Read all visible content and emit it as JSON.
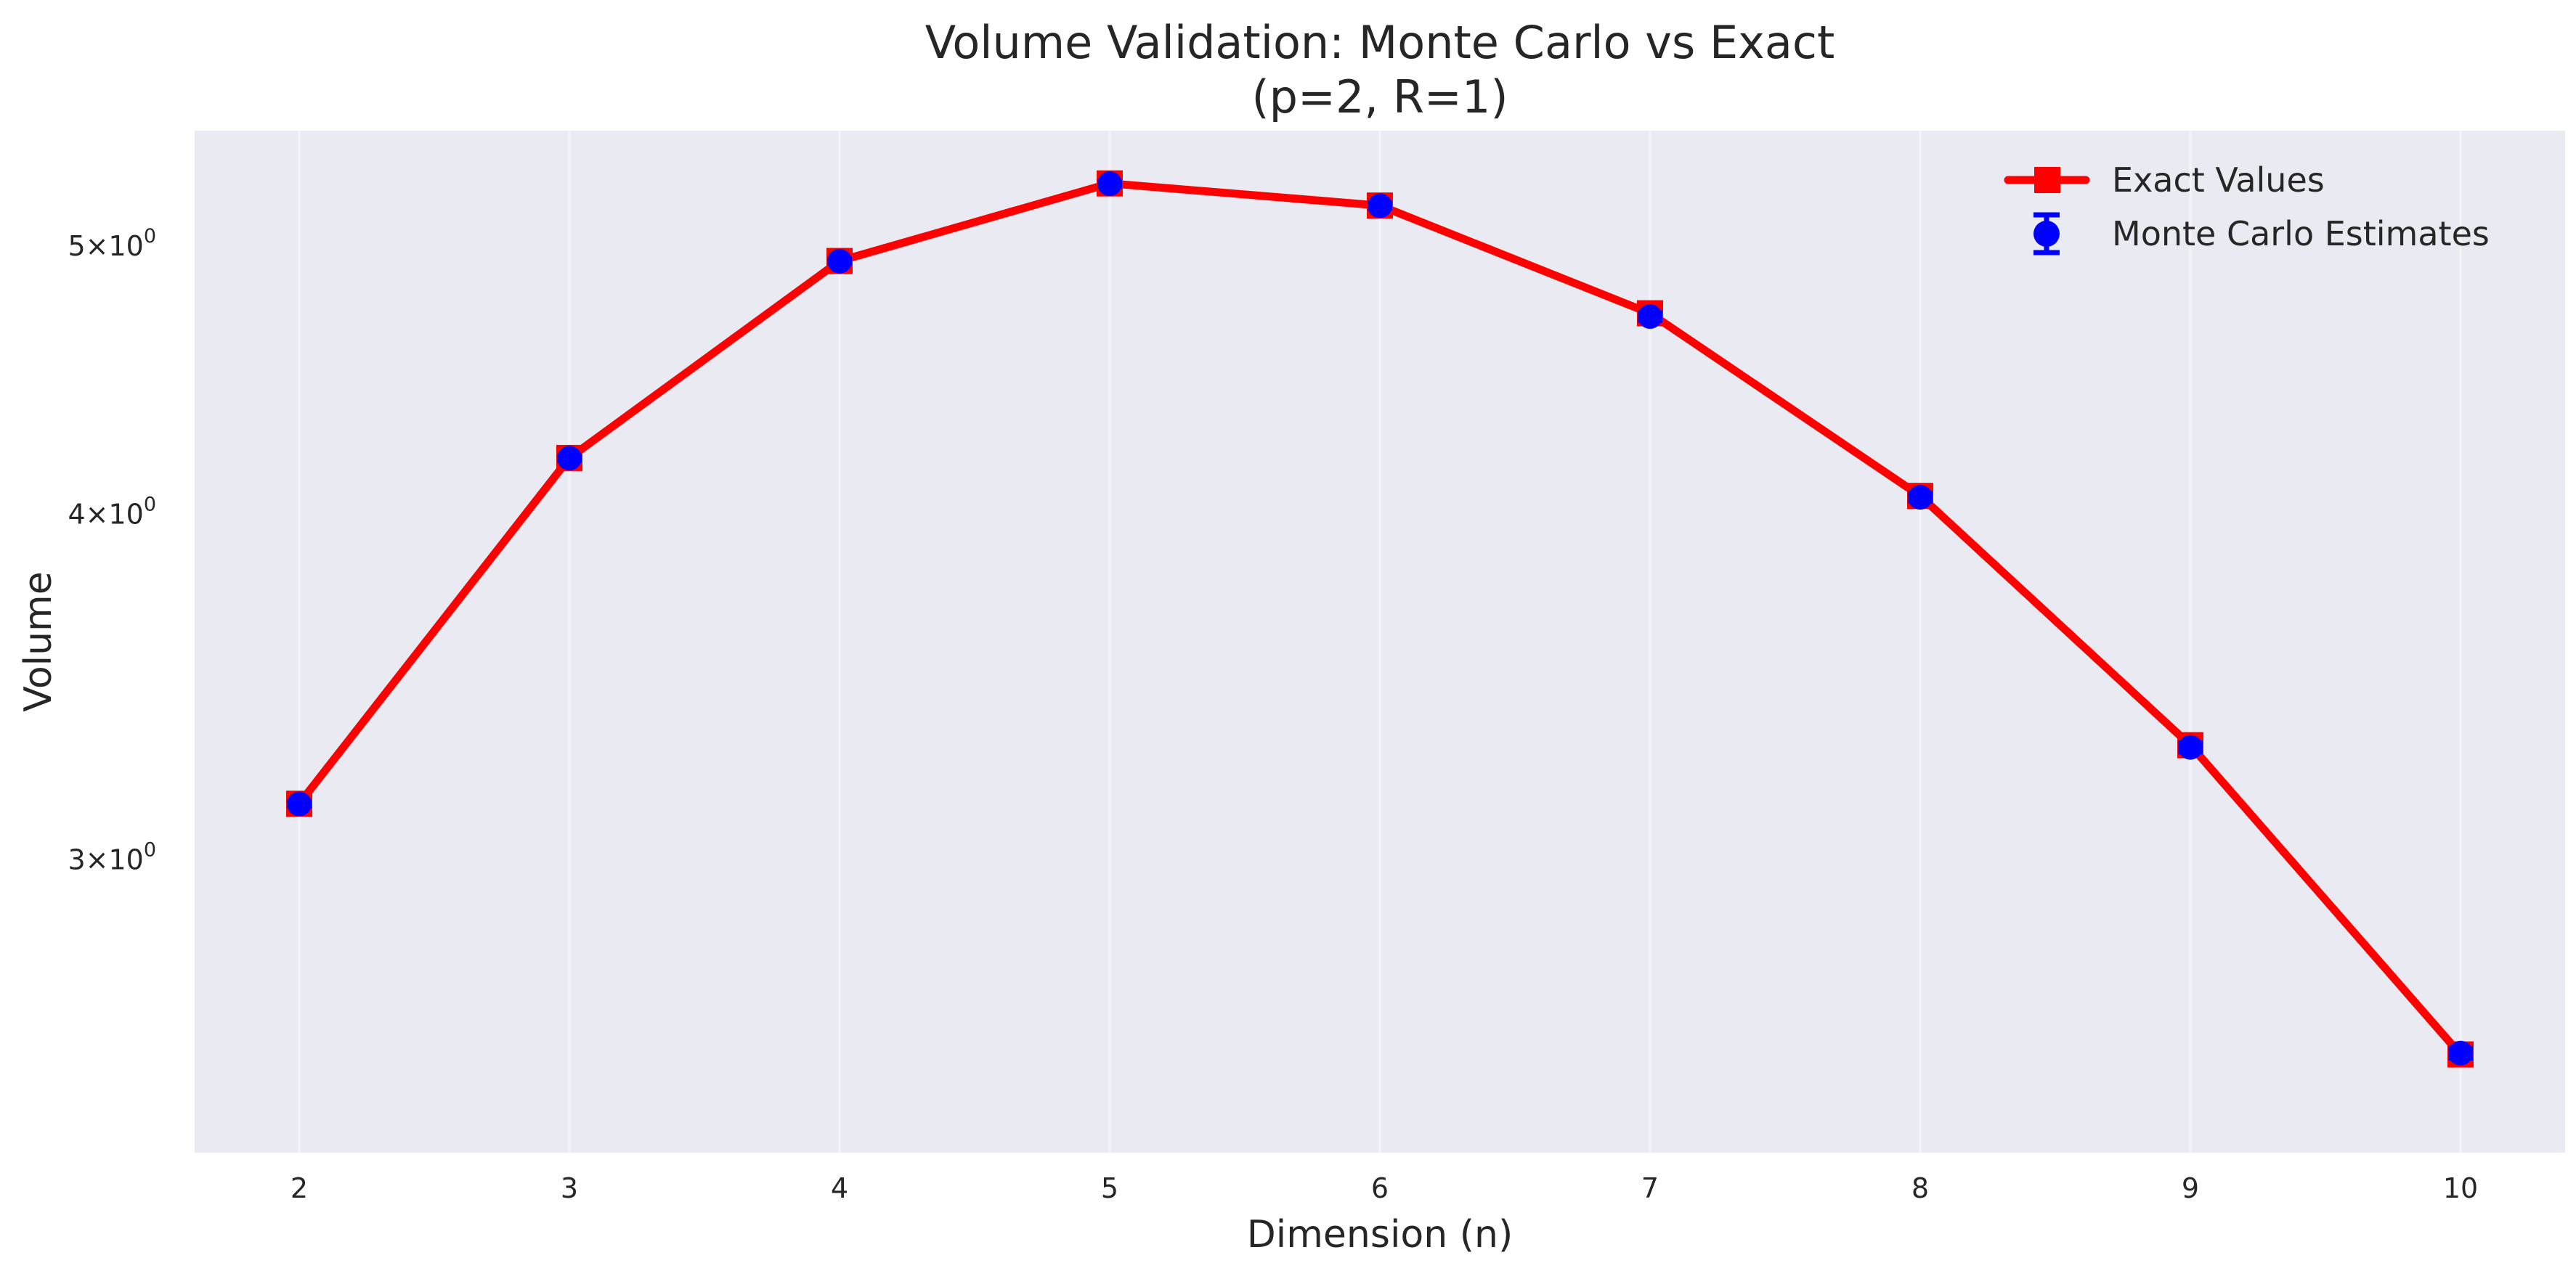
{
  "chart_data": {
    "type": "line",
    "title": "Volume Validation: Monte Carlo vs Exact",
    "subtitle": "(p=2, R=1)",
    "xlabel": "Dimension (n)",
    "ylabel": "Volume",
    "x": [
      2,
      3,
      4,
      5,
      6,
      7,
      8,
      9,
      10
    ],
    "yscale": "log",
    "ylim": [
      2.35,
      5.5
    ],
    "y_ticks": [
      {
        "value": 3,
        "base": "3",
        "exp": "0"
      },
      {
        "value": 4,
        "base": "4",
        "exp": "0"
      },
      {
        "value": 5,
        "base": "5",
        "exp": "0"
      }
    ],
    "grid": "vertical",
    "legend_position": "top-right",
    "series": [
      {
        "name": "Exact Values",
        "color": "#ff0000",
        "marker": "square",
        "values": [
          3.1416,
          4.1888,
          4.9348,
          5.2638,
          5.1677,
          4.7248,
          4.0587,
          3.2985,
          2.5502
        ]
      },
      {
        "name": "Monte Carlo Estimates",
        "color": "#0000ff",
        "marker": "circle",
        "error_bars": true,
        "values": [
          3.1411,
          4.1881,
          4.934,
          5.2625,
          5.1668,
          4.712,
          4.054,
          3.2925,
          2.553
        ],
        "errors": [
          0.006,
          0.008,
          0.009,
          0.01,
          0.012,
          0.016,
          0.014,
          0.013,
          0.011
        ]
      }
    ]
  }
}
